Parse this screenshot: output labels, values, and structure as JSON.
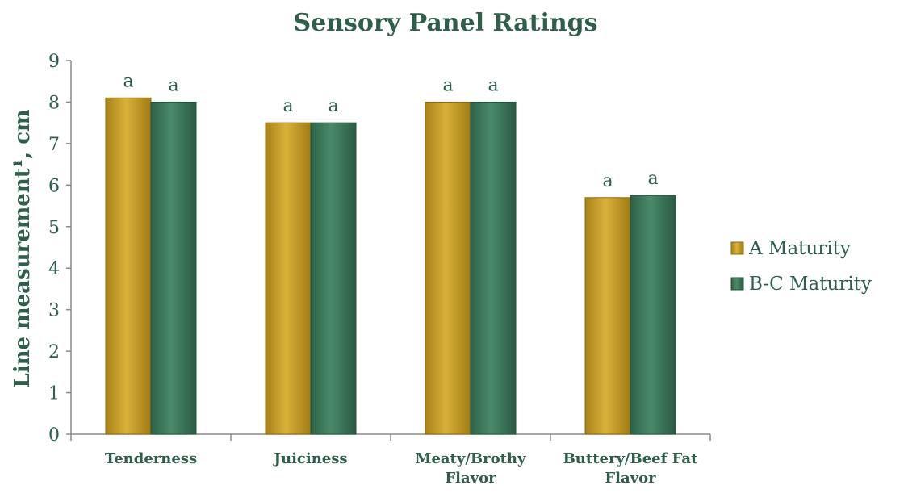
{
  "chart_data": {
    "type": "bar",
    "title": "Sensory Panel Ratings",
    "ylabel": "Line measurement¹, cm",
    "xlabel": "",
    "ylim": [
      0,
      9
    ],
    "yticks": [
      0,
      1,
      2,
      3,
      4,
      5,
      6,
      7,
      8,
      9
    ],
    "categories": [
      [
        "Tenderness"
      ],
      [
        "Juiciness"
      ],
      [
        "Meaty/Brothy",
        "Flavor"
      ],
      [
        "Buttery/Beef Fat",
        "Flavor"
      ]
    ],
    "series": [
      {
        "name": "A Maturity",
        "color": "#c9a227",
        "values": [
          8.1,
          7.5,
          8.0,
          5.7
        ],
        "labels": [
          "a",
          "a",
          "a",
          "a"
        ]
      },
      {
        "name": "B-C Maturity",
        "color": "#3e7a5c",
        "values": [
          8.0,
          7.5,
          8.0,
          5.75
        ],
        "labels": [
          "a",
          "a",
          "a",
          "a"
        ]
      }
    ],
    "legend_position": "right",
    "grid": false
  }
}
